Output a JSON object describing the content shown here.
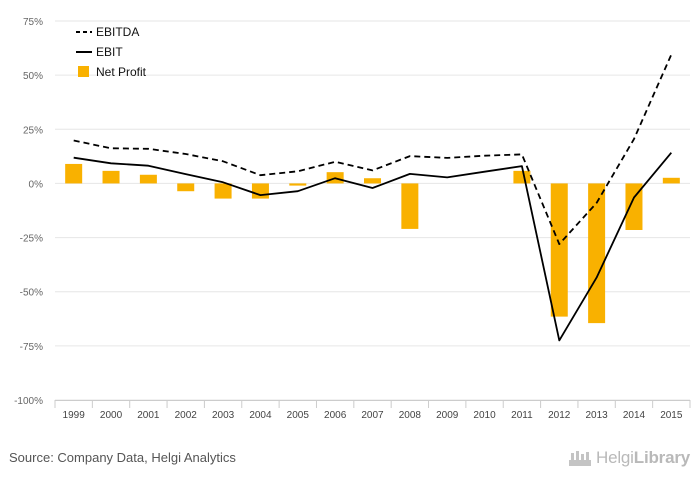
{
  "chart_data": {
    "type": "bar+line",
    "categories": [
      "1999",
      "2000",
      "2001",
      "2002",
      "2003",
      "2004",
      "2005",
      "2006",
      "2007",
      "2008",
      "2009",
      "2010",
      "2011",
      "2012",
      "2013",
      "2014",
      "2015"
    ],
    "series": [
      {
        "name": "EBITDA",
        "kind": "line",
        "style": "dashed",
        "color": "#000000",
        "values": [
          19.8,
          16.2,
          16.0,
          13.6,
          10.2,
          3.8,
          5.6,
          10.0,
          6.0,
          12.6,
          11.8,
          12.8,
          13.4,
          -28.0,
          -9.0,
          20.5,
          59.5
        ]
      },
      {
        "name": "EBIT",
        "kind": "line",
        "style": "solid",
        "color": "#000000",
        "values": [
          11.9,
          9.3,
          8.2,
          4.3,
          0.5,
          -5.4,
          -3.6,
          2.4,
          -2.1,
          4.4,
          2.8,
          5.4,
          8.0,
          -72.5,
          -43.5,
          -6.5,
          14.2
        ]
      },
      {
        "name": "Net Profit",
        "kind": "bar",
        "color": "#f9b100",
        "values": [
          9.0,
          5.8,
          4.0,
          -3.6,
          -7.0,
          -7.0,
          -1.0,
          5.2,
          2.4,
          -21.0,
          0,
          0,
          5.8,
          -61.5,
          -64.5,
          -21.5,
          2.6
        ]
      }
    ],
    "yticks": [
      "75%",
      "50%",
      "25%",
      "0%",
      "-25%",
      "-50%",
      "-75%",
      "-100%"
    ],
    "ylim": [
      -100,
      75
    ],
    "ytick_values": [
      75,
      50,
      25,
      0,
      -25,
      -50,
      -75,
      -100
    ],
    "legend_position": "top-left",
    "grid": true
  },
  "footer": {
    "source": "Source: Company Data, Helgi Analytics",
    "logo_prefix": "Helgi",
    "logo_suffix": "Library"
  }
}
